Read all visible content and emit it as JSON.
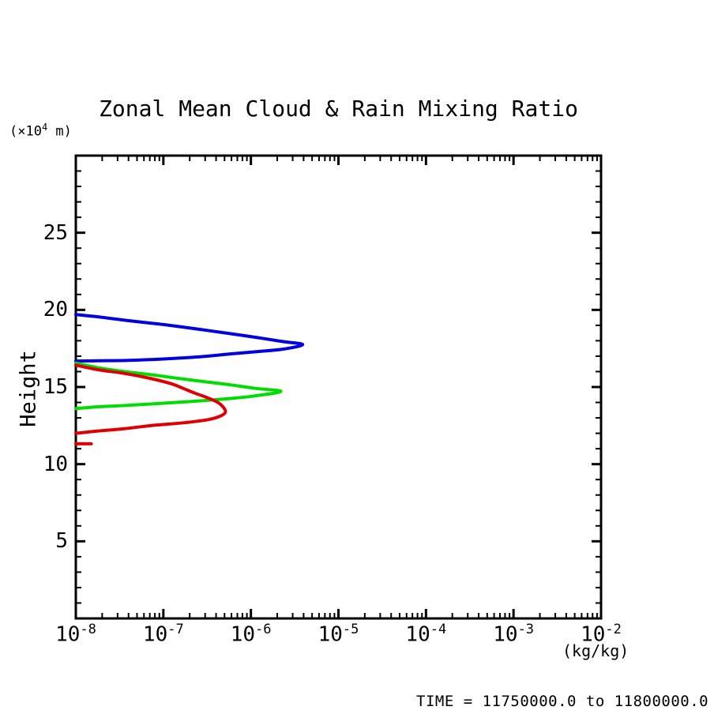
{
  "title": "Zonal Mean Cloud & Rain Mixing Ratio",
  "caption": "TIME = 11750000.0 to 11800000.0",
  "y_axis": {
    "label": "Height",
    "unit_prefix": "(×10",
    "unit_sup": "4",
    "unit_suffix": " m)",
    "tick_values": [
      5,
      10,
      15,
      20,
      25
    ],
    "range": [
      0,
      30
    ],
    "minor_step": 1,
    "major_step": 5
  },
  "x_axis": {
    "unit": "(kg/kg)",
    "scale": "log",
    "tick_base": "10",
    "tick_exponents": [
      "-8",
      "-7",
      "-6",
      "-5",
      "-4",
      "-3",
      "-2"
    ]
  },
  "colors": {
    "axis": "#000000",
    "background": "#ffffff"
  },
  "chart_data": {
    "type": "line",
    "title": "Zonal Mean Cloud & Rain Mixing Ratio",
    "xlabel": "(kg/kg)",
    "ylabel": "Height (x10^4 m)",
    "x_scale": "log",
    "xlim": [
      1e-08,
      0.01
    ],
    "ylim": [
      0,
      30
    ],
    "grid": false,
    "legend": "none",
    "series": [
      {
        "name": "blue-curve",
        "color": "#0000e0",
        "segments": [
          [
            [
              1e-08,
              19.7
            ],
            [
              1.8e-08,
              19.55
            ],
            [
              4e-08,
              19.3
            ],
            [
              1e-07,
              19.05
            ],
            [
              2.5e-07,
              18.75
            ],
            [
              6e-07,
              18.45
            ],
            [
              1.2e-06,
              18.2
            ],
            [
              2.3e-06,
              17.95
            ],
            [
              3.9e-06,
              17.75
            ],
            [
              2.3e-06,
              17.45
            ],
            [
              1.2e-06,
              17.3
            ],
            [
              6e-07,
              17.15
            ],
            [
              2.5e-07,
              16.95
            ],
            [
              1e-07,
              16.82
            ],
            [
              4e-08,
              16.73
            ],
            [
              1.8e-08,
              16.7
            ],
            [
              1e-08,
              16.68
            ]
          ]
        ]
      },
      {
        "name": "green-curve",
        "color": "#00dd00",
        "segments": [
          [
            [
              1e-08,
              16.55
            ],
            [
              1.8e-08,
              16.25
            ],
            [
              3.6e-08,
              16.0
            ],
            [
              7.2e-08,
              15.8
            ],
            [
              1.4e-07,
              15.58
            ],
            [
              2.9e-07,
              15.35
            ],
            [
              5.7e-07,
              15.15
            ],
            [
              1.1e-06,
              14.92
            ],
            [
              2.2e-06,
              14.72
            ],
            [
              1.1e-06,
              14.42
            ],
            [
              5.7e-07,
              14.25
            ],
            [
              2.9e-07,
              14.12
            ],
            [
              1.4e-07,
              14.0
            ],
            [
              7.2e-08,
              13.9
            ],
            [
              3.6e-08,
              13.8
            ],
            [
              1.8e-08,
              13.72
            ],
            [
              1e-08,
              13.6
            ]
          ]
        ]
      },
      {
        "name": "red-curve",
        "color": "#e00000",
        "segments": [
          [
            [
              1e-08,
              16.42
            ],
            [
              1.8e-08,
              16.12
            ],
            [
              3.6e-08,
              15.88
            ],
            [
              7.2e-08,
              15.55
            ],
            [
              1.25e-07,
              15.2
            ],
            [
              1.7e-07,
              14.9
            ],
            [
              2.3e-07,
              14.6
            ],
            [
              3.2e-07,
              14.3
            ],
            [
              4.2e-07,
              14.0
            ],
            [
              4.9e-07,
              13.65
            ],
            [
              5.1e-07,
              13.35
            ],
            [
              4.4e-07,
              13.1
            ],
            [
              3.2e-07,
              12.88
            ],
            [
              1.7e-07,
              12.68
            ],
            [
              7.2e-08,
              12.5
            ],
            [
              3.6e-08,
              12.3
            ],
            [
              1.8e-08,
              12.15
            ],
            [
              1e-08,
              12.0
            ]
          ],
          [
            [
              1e-08,
              11.32
            ],
            [
              1.5e-08,
              11.32
            ]
          ]
        ]
      }
    ]
  }
}
